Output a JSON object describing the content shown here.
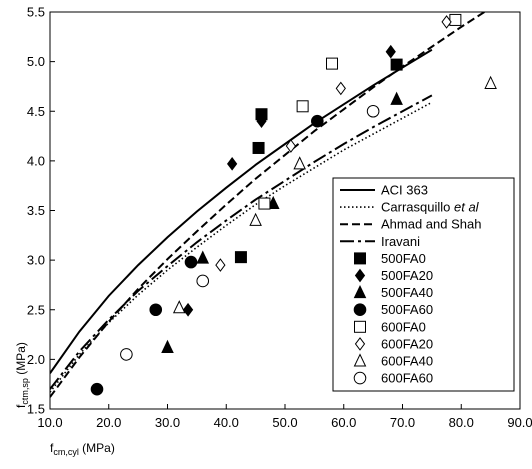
{
  "chart_data": {
    "type": "scatter",
    "title": "",
    "xlabel": "f_cm,cyl (MPa)",
    "ylabel": "f_ctm,sp (MPa)",
    "xlabel_parts": {
      "base": "f",
      "sub": "cm,cyl",
      "unit": " (MPa)"
    },
    "ylabel_parts": {
      "base": "f",
      "sub": "ctm,sp",
      "unit": " (MPa)"
    },
    "xlim": [
      10.0,
      90.0
    ],
    "ylim": [
      1.5,
      5.5
    ],
    "x_ticks": [
      10.0,
      20.0,
      30.0,
      40.0,
      50.0,
      60.0,
      70.0,
      80.0,
      90.0
    ],
    "x_tick_labels": [
      "10.0",
      "20.0",
      "30.0",
      "40.0",
      "50.0",
      "60.0",
      "70.0",
      "80.0",
      "90.0"
    ],
    "y_ticks": [
      1.5,
      2.0,
      2.5,
      3.0,
      3.5,
      4.0,
      4.5,
      5.0,
      5.5
    ],
    "y_tick_labels": [
      "1.5",
      "2.0",
      "2.5",
      "3.0",
      "3.5",
      "4.0",
      "4.5",
      "5.0",
      "5.5"
    ],
    "grid": false,
    "legend_position": "bottom-right",
    "lines": [
      {
        "name": "ACI 363",
        "style": "solid",
        "x": [
          10,
          15,
          20,
          25,
          30,
          35,
          40,
          45,
          50,
          55,
          60,
          65,
          70,
          75
        ],
        "y": [
          1.86,
          2.28,
          2.64,
          2.95,
          3.23,
          3.49,
          3.73,
          3.96,
          4.17,
          4.38,
          4.57,
          4.76,
          4.94,
          5.12
        ]
      },
      {
        "name": "Carrasquillo et al",
        "name_parts": [
          "Carrasquillo ",
          "et al"
        ],
        "style": "dotted",
        "x": [
          10,
          15,
          20,
          25,
          30,
          35,
          40,
          45,
          50,
          55,
          60,
          65,
          70,
          75
        ],
        "y": [
          1.67,
          2.05,
          2.37,
          2.65,
          2.9,
          3.13,
          3.35,
          3.56,
          3.75,
          3.93,
          4.11,
          4.27,
          4.43,
          4.59
        ]
      },
      {
        "name": "Ahmad and Shah",
        "style": "dashed",
        "x": [
          10,
          15,
          20,
          25,
          30,
          35,
          40,
          45,
          50,
          55,
          60,
          65,
          70,
          75,
          80,
          85,
          90
        ],
        "y": [
          1.62,
          2.02,
          2.38,
          2.71,
          3.01,
          3.29,
          3.56,
          3.82,
          4.06,
          4.3,
          4.52,
          4.74,
          4.95,
          5.15,
          5.35,
          5.54,
          5.73
        ]
      },
      {
        "name": "Iravani",
        "style": "longdash",
        "x": [
          10,
          15,
          20,
          25,
          30,
          35,
          40,
          45,
          50,
          55,
          60,
          65,
          70,
          75
        ],
        "y": [
          1.7,
          2.08,
          2.4,
          2.69,
          2.94,
          3.18,
          3.4,
          3.61,
          3.8,
          3.99,
          4.17,
          4.34,
          4.5,
          4.66
        ]
      }
    ],
    "series": [
      {
        "name": "500FA0",
        "marker": "square",
        "filled": true,
        "points": [
          [
            42.5,
            3.03
          ],
          [
            45.5,
            4.13
          ],
          [
            46.0,
            4.47
          ],
          [
            69.0,
            4.97
          ]
        ]
      },
      {
        "name": "500FA20",
        "marker": "diamond",
        "filled": true,
        "points": [
          [
            33.5,
            2.5
          ],
          [
            41.0,
            3.97
          ],
          [
            46.0,
            4.4
          ],
          [
            68.0,
            5.1
          ]
        ]
      },
      {
        "name": "500FA40",
        "marker": "triangle",
        "filled": true,
        "points": [
          [
            30.0,
            2.12
          ],
          [
            36.0,
            3.02
          ],
          [
            48.0,
            3.57
          ],
          [
            69.0,
            4.62
          ]
        ]
      },
      {
        "name": "500FA60",
        "marker": "circle",
        "filled": true,
        "points": [
          [
            18.0,
            1.7
          ],
          [
            28.0,
            2.5
          ],
          [
            34.0,
            2.98
          ],
          [
            55.5,
            4.4
          ]
        ]
      },
      {
        "name": "600FA0",
        "marker": "square",
        "filled": false,
        "points": [
          [
            46.5,
            3.57
          ],
          [
            53.0,
            4.55
          ],
          [
            58.0,
            4.98
          ],
          [
            79.0,
            5.42
          ]
        ]
      },
      {
        "name": "600FA20",
        "marker": "diamond",
        "filled": false,
        "points": [
          [
            39.0,
            2.95
          ],
          [
            51.0,
            4.15
          ],
          [
            59.5,
            4.73
          ],
          [
            77.5,
            5.4
          ]
        ]
      },
      {
        "name": "600FA40",
        "marker": "triangle",
        "filled": false,
        "points": [
          [
            32.0,
            2.52
          ],
          [
            45.0,
            3.4
          ],
          [
            52.5,
            3.97
          ],
          [
            85.0,
            4.78
          ]
        ]
      },
      {
        "name": "600FA60",
        "marker": "circle",
        "filled": false,
        "points": [
          [
            23.0,
            2.05
          ],
          [
            36.0,
            2.79
          ],
          [
            65.0,
            4.5
          ]
        ]
      }
    ]
  }
}
